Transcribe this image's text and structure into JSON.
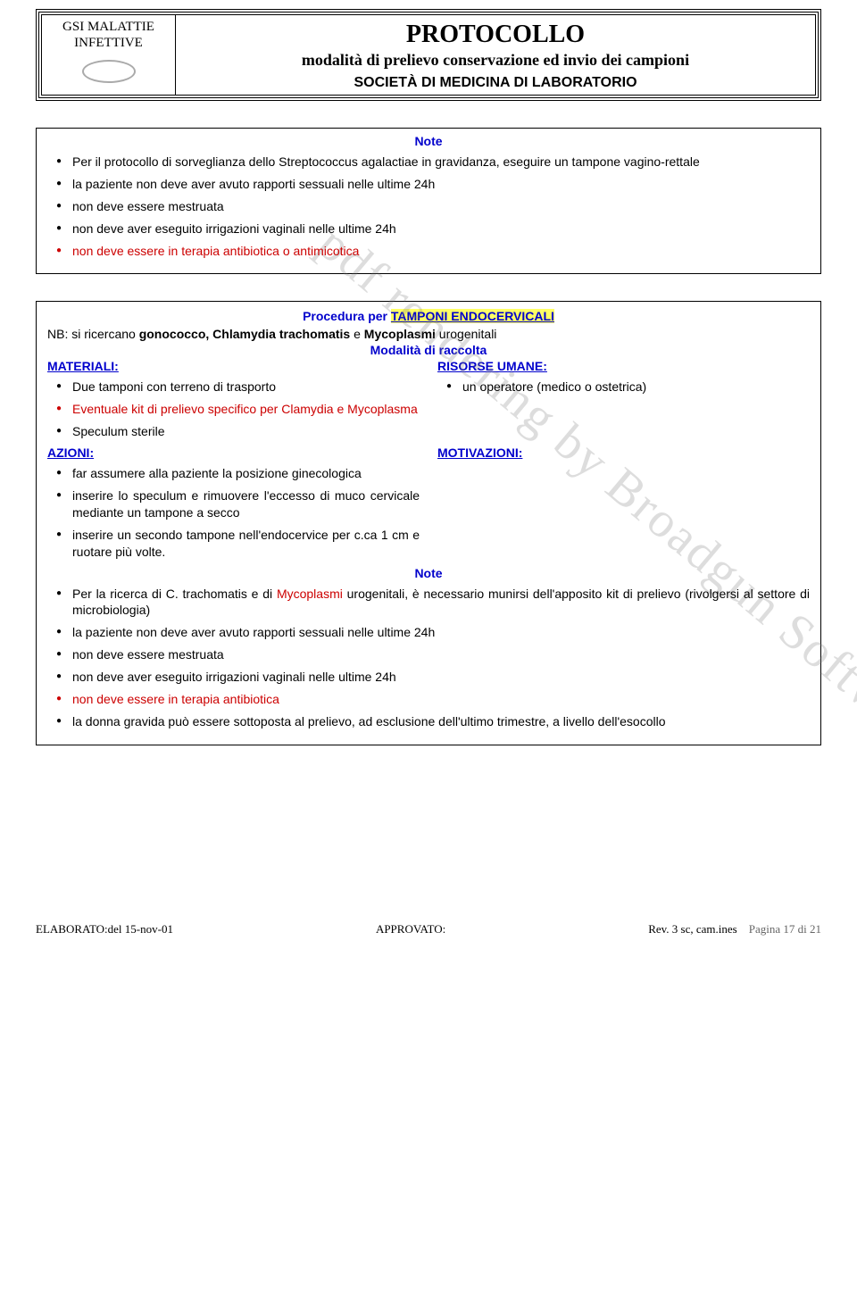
{
  "header": {
    "org_line1": "GSI MALATTIE",
    "org_line2": "INFETTIVE",
    "title": "PROTOCOLLO",
    "subtitle": "modalità di prelievo conservazione ed invio dei campioni",
    "society": "SOCIETÀ DI MEDICINA DI LABORATORIO"
  },
  "watermark": "pdf rendering by Broadgun Software",
  "box1": {
    "note_label": "Note",
    "items": [
      {
        "text": "Per il protocollo di sorveglianza dello Streptococcus agalactiae in gravidanza, eseguire un tampone vagino-rettale",
        "red": false
      },
      {
        "text": "la paziente non deve aver avuto rapporti sessuali nelle ultime 24h",
        "red": false
      },
      {
        "text": "non deve essere mestruata",
        "red": false
      },
      {
        "text": "non deve aver eseguito irrigazioni vaginali nelle ultime 24h",
        "red": false
      },
      {
        "text": "non deve essere in terapia antibiotica o antimicotica",
        "red": true
      }
    ]
  },
  "box2": {
    "proc_prefix": "Procedura per ",
    "proc_hl": "TAMPONI ENDOCERVICALI",
    "nb_line_prefix": "NB: si ricercano ",
    "nb_line_bold": "gonococco, Chlamydia trachomatis",
    "nb_line_rest": " e ",
    "nb_line_bold2": "Mycoplasmi",
    "nb_line_rest2": " urogenitali",
    "mod_label": "Modalità di raccolta",
    "materiali_label": "MATERIALI:",
    "risorse_label": "RISORSE UMANE:",
    "azioni_label": "AZIONI:",
    "motiv_label": "MOTIVAZIONI:",
    "materiali": [
      {
        "text": "Due tamponi con terreno di trasporto",
        "red": false
      },
      {
        "text": "Eventuale kit di prelievo specifico per Clamydia e Mycoplasma",
        "red": true
      },
      {
        "text": "Speculum sterile",
        "red": false
      }
    ],
    "risorse": [
      {
        "text": "un operatore (medico o ostetrica)",
        "red": false
      }
    ],
    "azioni": [
      {
        "text": "far assumere alla paziente la posizione ginecologica",
        "red": false
      },
      {
        "text": "inserire lo speculum e rimuovere l'eccesso di muco cervicale mediante un tampone a secco",
        "red": false
      },
      {
        "text": "inserire un secondo tampone nell'endocervice per c.ca 1 cm e ruotare più volte.",
        "red": false
      }
    ],
    "note_label": "Note",
    "notes": [
      {
        "pre": "Per la ricerca di C. trachomatis e di ",
        "red_mid": "Mycoplasmi",
        "post": " urogenitali, è necessario munirsi dell'apposito kit di prelievo (rivolgersi al settore di microbiologia)"
      },
      {
        "pre": "la paziente non deve aver avuto rapporti sessuali nelle ultime 24h"
      },
      {
        "pre": "non deve essere mestruata"
      },
      {
        "pre": "non deve aver eseguito irrigazioni vaginali nelle ultime 24h"
      },
      {
        "pre": "non deve essere in terapia antibiotica",
        "all_red": true
      },
      {
        "pre": "la donna gravida può essere sottoposta al prelievo, ad esclusione dell'ultimo trimestre, a livello dell'esocollo"
      }
    ]
  },
  "footer": {
    "left": "ELABORATO:del 15-nov-01",
    "mid": "APPROVATO:",
    "rev": "Rev. 3 sc, cam.ines",
    "page": "Pagina 17 di 21"
  }
}
